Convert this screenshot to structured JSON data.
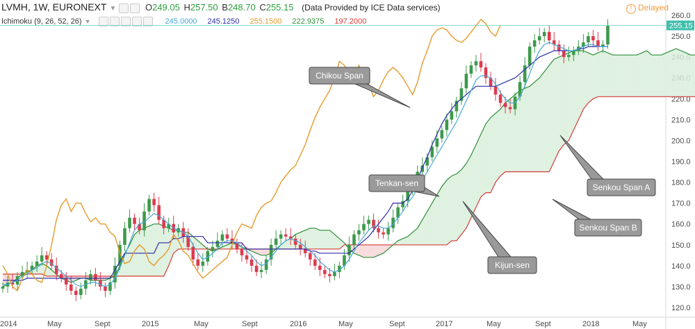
{
  "header": {
    "symbol": "LVMH, 1W, EURONEXT",
    "o_label": "O",
    "o_value": "249.05",
    "h_label": "H",
    "h_value": "257.50",
    "b_label": "B",
    "b_value": "248.70",
    "c_label": "C",
    "c_value": "255.15",
    "source": "(Data Provided by ICE Data services)",
    "delayed": "Delayed"
  },
  "indicator": {
    "name": "Ichimoku (9, 26, 52, 26)",
    "values": [
      "245.0000",
      "245.1250",
      "255.1500",
      "222.9375",
      "197.2000"
    ]
  },
  "colors": {
    "up": "#3d9a4c",
    "down": "#dd3b4f",
    "tenkan": "#45a8d6",
    "kijun": "#2c2ca8",
    "chikou": "#e59a2a",
    "span_a": "#2f8f3a",
    "span_b": "#d63b36",
    "cloud_bull": "#d9eeda",
    "cloud_bear": "#f8d6d8",
    "price_line": "#7fd6c9",
    "price_tag": "#3fbfae"
  },
  "chart_data": {
    "type": "candlestick",
    "y_axis": {
      "min": 116,
      "max": 264,
      "ticks": [
        "120.0",
        "130.0",
        "140.0",
        "150.0",
        "160.0",
        "170.0",
        "180.0",
        "190.0",
        "200.0",
        "210.0",
        "220.0",
        "230.0",
        "240.0",
        "250.0",
        "260.0"
      ],
      "side": "right"
    },
    "x_axis_labels": [
      "2014",
      "May",
      "Sept",
      "2015",
      "May",
      "Sept",
      "2016",
      "May",
      "Sept",
      "2017",
      "May",
      "Sept",
      "2018",
      "May"
    ],
    "last_price": "255.15",
    "close": [
      130,
      132,
      131,
      135,
      137,
      138,
      140,
      142,
      145,
      143,
      140,
      136,
      134,
      131,
      128,
      126,
      129,
      133,
      136,
      133,
      130,
      128,
      132,
      140,
      150,
      158,
      163,
      160,
      157,
      166,
      172,
      169,
      162,
      158,
      160,
      156,
      158,
      154,
      149,
      143,
      140,
      142,
      147,
      149,
      152,
      155,
      153,
      151,
      148,
      145,
      143,
      140,
      137,
      138,
      143,
      150,
      153,
      155,
      154,
      153,
      150,
      148,
      146,
      143,
      140,
      138,
      136,
      135,
      137,
      140,
      145,
      150,
      155,
      157,
      160,
      162,
      158,
      156,
      155,
      158,
      163,
      168,
      171,
      176,
      180,
      185,
      188,
      192,
      197,
      201,
      205,
      210,
      214,
      219,
      225,
      232,
      236,
      238,
      235,
      230,
      226,
      222,
      218,
      216,
      215,
      221,
      228,
      236,
      245,
      248,
      250,
      252,
      248,
      246,
      243,
      240,
      241,
      243,
      245,
      247,
      250,
      248,
      245,
      246,
      255.15
    ],
    "tenkan": [
      131,
      131,
      132,
      133,
      135,
      136,
      138,
      139,
      141,
      142,
      141,
      139,
      137,
      135,
      133,
      131,
      130,
      131,
      132,
      132,
      131,
      130,
      131,
      134,
      139,
      145,
      151,
      157,
      160,
      161,
      163,
      165,
      164,
      162,
      160,
      158,
      157,
      156,
      154,
      150,
      146,
      143,
      144,
      146,
      148,
      151,
      152,
      152,
      151,
      149,
      147,
      145,
      142,
      140,
      141,
      144,
      147,
      150,
      152,
      153,
      152,
      151,
      149,
      147,
      145,
      142,
      140,
      138,
      137,
      138,
      140,
      143,
      147,
      151,
      154,
      157,
      159,
      159,
      158,
      158,
      160,
      163,
      166,
      170,
      173,
      177,
      181,
      185,
      189,
      193,
      197,
      201,
      205,
      209,
      214,
      219,
      224,
      229,
      231,
      231,
      230,
      227,
      223,
      220,
      218,
      218,
      221,
      226,
      232,
      238,
      243,
      246,
      247,
      246,
      245,
      244,
      243,
      243,
      244,
      245,
      246,
      246,
      245,
      245,
      245
    ],
    "kijun": [
      133,
      133,
      133,
      133,
      133,
      134,
      134,
      134,
      134,
      134,
      134,
      134,
      134,
      134,
      134,
      134,
      134,
      134,
      134,
      134,
      134,
      134,
      134,
      138,
      142,
      146,
      146,
      146,
      146,
      146,
      146,
      146,
      151,
      151,
      151,
      153,
      153,
      154,
      154,
      154,
      154,
      154,
      151,
      151,
      151,
      151,
      151,
      151,
      151,
      151,
      148,
      148,
      148,
      148,
      148,
      148,
      148,
      148,
      148,
      148,
      148,
      148,
      148,
      147,
      147,
      146,
      146,
      146,
      146,
      146,
      146,
      146,
      148,
      150,
      152,
      154,
      157,
      160,
      163,
      166,
      170,
      170,
      170,
      172,
      176,
      181,
      187,
      192,
      198,
      203,
      208,
      212,
      215,
      218,
      220,
      222,
      224,
      226,
      226,
      226,
      226,
      226,
      227,
      228,
      229,
      230,
      232,
      234,
      236,
      238,
      240,
      241,
      242,
      243,
      243,
      243,
      243,
      243,
      244,
      244,
      245,
      245,
      245,
      245,
      245.125
    ],
    "chikou": [
      140,
      136,
      130,
      128,
      134,
      138,
      136,
      133,
      132,
      140,
      150,
      162,
      169,
      172,
      166,
      170,
      170,
      165,
      161,
      163,
      160,
      160,
      156,
      154,
      146,
      141,
      142,
      147,
      150,
      148,
      142,
      140,
      143,
      145,
      148,
      155,
      152,
      147,
      145,
      141,
      137,
      134,
      136,
      138,
      140,
      142,
      144,
      150,
      156,
      160,
      159,
      158,
      164,
      168,
      170,
      171,
      175,
      180,
      183,
      186,
      188,
      193,
      198,
      205,
      211,
      216,
      220,
      224,
      230,
      238,
      236,
      233,
      230,
      236,
      230,
      227,
      221,
      224,
      229,
      233,
      235,
      233,
      230,
      226,
      222,
      228,
      237,
      243,
      250,
      253,
      254,
      253,
      250,
      248,
      247,
      249,
      252,
      255,
      258,
      256,
      252,
      250,
      255.15
    ],
    "senkou_a": [
      130,
      131,
      132,
      134,
      136,
      137,
      138,
      140,
      141,
      140,
      138,
      136,
      134,
      133,
      132,
      133,
      134,
      134,
      133,
      133,
      133,
      133,
      134,
      135,
      140,
      146,
      150,
      155,
      157,
      158,
      159,
      160,
      160,
      159,
      158,
      157,
      157,
      156,
      156,
      154,
      152,
      150,
      148,
      147,
      148,
      149,
      150,
      151,
      150,
      149,
      148,
      147,
      146,
      145,
      145,
      146,
      148,
      150,
      152,
      153,
      155,
      156,
      157,
      158,
      158,
      157,
      157,
      157,
      155,
      153,
      151,
      148,
      146,
      145,
      144,
      144,
      144,
      145,
      146,
      148,
      150,
      152,
      153,
      154,
      156,
      158,
      162,
      166,
      170,
      174,
      178,
      181,
      183,
      184,
      186,
      189,
      193,
      198,
      203,
      208,
      211,
      213,
      215,
      218,
      220,
      222,
      224,
      225,
      226,
      228,
      230,
      233,
      236,
      239,
      240,
      241,
      242,
      243,
      243,
      243,
      242,
      241,
      242,
      243,
      242,
      241,
      241,
      241,
      241,
      241,
      241,
      242,
      243,
      241,
      241,
      241,
      242,
      243,
      244,
      243,
      242,
      241,
      241,
      241
    ],
    "senkou_b": [
      136,
      136,
      136,
      136,
      136,
      136,
      136,
      136,
      136,
      135,
      135,
      135,
      135,
      135,
      135,
      135,
      135,
      135,
      135,
      135,
      135,
      135,
      135,
      135,
      135,
      135,
      135,
      135,
      135,
      135,
      135,
      135,
      135,
      135,
      140,
      146,
      148,
      148,
      148,
      148,
      148,
      148,
      148,
      148,
      148,
      148,
      148,
      148,
      148,
      148,
      148,
      148,
      148,
      148,
      148,
      148,
      148,
      148,
      148,
      148,
      148,
      148,
      148,
      148,
      148,
      148,
      148,
      148,
      148,
      148,
      150,
      150,
      150,
      150,
      150,
      150,
      150,
      150,
      150,
      150,
      150,
      150,
      150,
      150,
      150,
      150,
      150,
      150,
      150,
      150,
      150,
      150,
      152,
      152,
      155,
      158,
      163,
      168,
      173,
      175,
      175,
      180,
      183,
      185,
      185,
      185,
      185,
      185,
      185,
      185,
      185,
      185,
      185,
      190,
      195,
      198,
      200,
      205,
      210,
      215,
      218,
      220,
      221,
      221,
      221,
      221,
      221,
      221,
      221,
      221,
      221,
      221,
      221,
      221,
      221,
      221,
      221,
      221,
      221,
      221,
      221,
      221,
      221,
      221
    ],
    "annotations": [
      "Chikou Span",
      "Tenkan-sen",
      "Kijun-sen",
      "Senkou Span A",
      "Senkou Span B"
    ]
  }
}
